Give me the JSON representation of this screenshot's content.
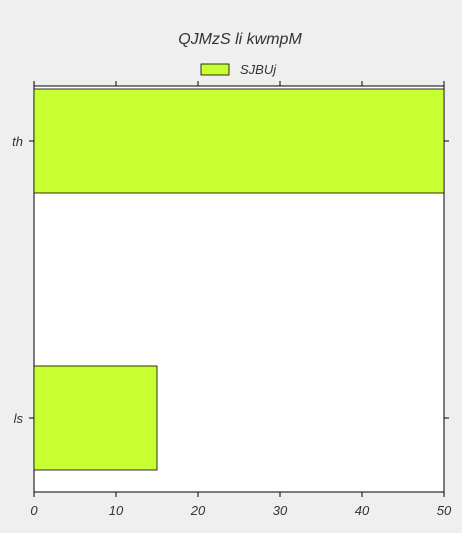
{
  "chart_data": {
    "type": "bar",
    "orientation": "horizontal",
    "title": "QJMzS li kwmpM",
    "categories": [
      "th",
      "ls"
    ],
    "series": [
      {
        "name": "SJBUj",
        "values": [
          50,
          15
        ]
      }
    ],
    "xlim": [
      0,
      50
    ],
    "x_ticks": [
      "0",
      "10",
      "20",
      "30",
      "40",
      "50"
    ],
    "xlabel": "",
    "ylabel": "",
    "grid": false,
    "legend_position": "top-center",
    "colors": {
      "bar": "#c8ff33",
      "plot_bg": "#ffffff",
      "figure_bg": "#efefef",
      "axis": "#000000"
    }
  }
}
